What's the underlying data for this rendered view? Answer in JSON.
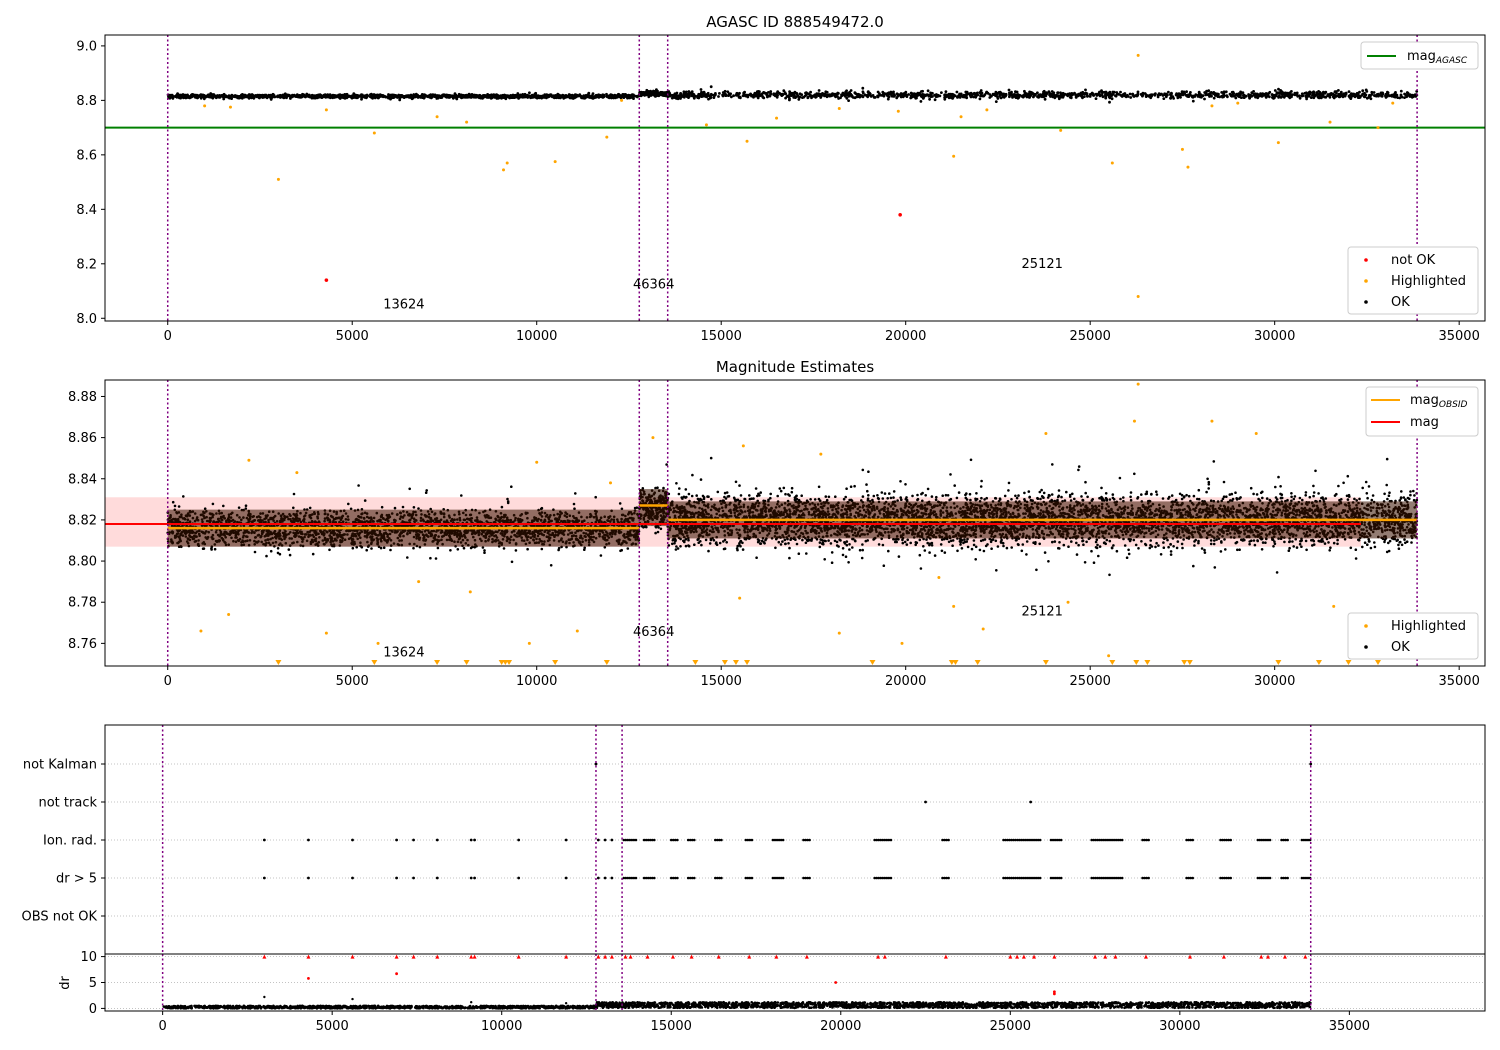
{
  "figure_title": "AGASC ID 888549472.0",
  "colors": {
    "ok": "#000000",
    "highlighted": "#ffa500",
    "not_ok": "#ff0000",
    "mag_agasc_line": "#008000",
    "mag_line": "#ff0000",
    "mag_band": "#ffcccc",
    "mag_obsid_line": "#ffa500",
    "divider": "#800080",
    "grid": "#b0b0b0"
  },
  "chart_data": [
    {
      "type": "scatter",
      "title": "AGASC ID 888549472.0",
      "xlim": [
        -1700,
        35700
      ],
      "ylim": [
        7.99,
        9.04
      ],
      "xticks": [
        0,
        5000,
        10000,
        15000,
        20000,
        25000,
        30000,
        35000
      ],
      "yticks": [
        8.0,
        8.2,
        8.4,
        8.6,
        8.8,
        9.0
      ],
      "ytick_labels": [
        "8.0",
        "8.2",
        "8.4",
        "8.6",
        "8.8",
        "9.0"
      ],
      "mag_agasc": 8.7,
      "mag_agasc_xrange": [
        -1700,
        35700
      ],
      "observation_boundaries": [
        0,
        12780,
        13550,
        33860
      ],
      "observation_labels": [
        {
          "text": "13624",
          "x": 6400,
          "y": 8.035
        },
        {
          "text": "46364",
          "x": 13170,
          "y": 8.11
        },
        {
          "text": "25121",
          "x": 23700,
          "y": 8.185
        }
      ],
      "ok_band": {
        "segments": [
          {
            "x": [
              0,
              12780
            ],
            "center": 8.815,
            "halfwidth": 0.012
          },
          {
            "x": [
              12780,
              13550
            ],
            "center": 8.825,
            "halfwidth": 0.015
          },
          {
            "x": [
              13550,
              33860
            ],
            "center": 8.82,
            "halfwidth": 0.022
          }
        ]
      },
      "highlighted_points": [
        [
          3000,
          8.51
        ],
        [
          5600,
          8.68
        ],
        [
          9100,
          8.545
        ],
        [
          9200,
          8.57
        ],
        [
          10500,
          8.575
        ],
        [
          11900,
          8.665
        ],
        [
          21300,
          8.595
        ],
        [
          25600,
          8.57
        ],
        [
          27500,
          8.62
        ],
        [
          27650,
          8.555
        ],
        [
          30100,
          8.645
        ],
        [
          26300,
          8.08
        ],
        [
          26300,
          8.965
        ],
        [
          14600,
          8.71
        ],
        [
          15700,
          8.65
        ],
        [
          19800,
          8.76
        ],
        [
          24200,
          8.69
        ],
        [
          31500,
          8.72
        ],
        [
          32800,
          8.7
        ],
        [
          8100,
          8.72
        ],
        [
          7300,
          8.74
        ],
        [
          1000,
          8.78
        ],
        [
          1700,
          8.775
        ],
        [
          4300,
          8.765
        ],
        [
          12300,
          8.8
        ],
        [
          16500,
          8.735
        ],
        [
          18200,
          8.77
        ],
        [
          21500,
          8.74
        ],
        [
          22200,
          8.765
        ],
        [
          28300,
          8.78
        ],
        [
          29000,
          8.79
        ],
        [
          33200,
          8.79
        ]
      ],
      "not_ok_points": [
        [
          4300,
          8.14
        ],
        [
          19850,
          8.38
        ]
      ],
      "legends": [
        {
          "position": "upper-right",
          "entries": [
            {
              "label": "mag",
              "sub": "AGASC",
              "kind": "line",
              "color": "#008000"
            }
          ]
        },
        {
          "position": "lower-right",
          "entries": [
            {
              "label": "not OK",
              "kind": "point",
              "color": "#ff0000"
            },
            {
              "label": "Highlighted",
              "kind": "point",
              "color": "#ffa500"
            },
            {
              "label": "OK",
              "kind": "point",
              "color": "#000000"
            }
          ]
        }
      ]
    },
    {
      "type": "scatter",
      "title": "Magnitude Estimates",
      "xlim": [
        -1700,
        35700
      ],
      "ylim": [
        8.749,
        8.888
      ],
      "xticks": [
        0,
        5000,
        10000,
        15000,
        20000,
        25000,
        30000,
        35000
      ],
      "yticks": [
        8.76,
        8.78,
        8.8,
        8.82,
        8.84,
        8.86,
        8.88
      ],
      "ytick_labels": [
        "8.76",
        "8.78",
        "8.80",
        "8.82",
        "8.84",
        "8.86",
        "8.88"
      ],
      "mag": 8.818,
      "mag_band": [
        8.807,
        8.831
      ],
      "mag_obsid": [
        {
          "x": [
            0,
            12780
          ],
          "value": 8.816
        },
        {
          "x": [
            12780,
            13550
          ],
          "value": 8.827
        },
        {
          "x": [
            13550,
            33860
          ],
          "value": 8.82
        }
      ],
      "observation_boundaries": [
        0,
        12780,
        13550,
        33860
      ],
      "observation_labels": [
        {
          "text": "13624",
          "x": 6400,
          "y": 8.7535
        },
        {
          "text": "46364",
          "x": 13170,
          "y": 8.7635
        },
        {
          "text": "25121",
          "x": 23700,
          "y": 8.7735
        }
      ],
      "ok_band": {
        "segments": [
          {
            "x": [
              0,
              12780
            ],
            "center": 8.816,
            "halfwidth": 0.02
          },
          {
            "x": [
              12780,
              13550
            ],
            "center": 8.826,
            "halfwidth": 0.024
          },
          {
            "x": [
              13550,
              33860
            ],
            "center": 8.82,
            "halfwidth": 0.03
          }
        ]
      },
      "highlighted_points": [
        [
          900,
          8.766
        ],
        [
          1650,
          8.774
        ],
        [
          4300,
          8.765
        ],
        [
          5700,
          8.76
        ],
        [
          9800,
          8.76
        ],
        [
          11100,
          8.766
        ],
        [
          13150,
          8.86
        ],
        [
          15600,
          8.856
        ],
        [
          18200,
          8.765
        ],
        [
          19900,
          8.76
        ],
        [
          22100,
          8.767
        ],
        [
          25500,
          8.754
        ],
        [
          26300,
          8.886
        ],
        [
          26200,
          8.868
        ],
        [
          28300,
          8.868
        ],
        [
          2200,
          8.849
        ],
        [
          10000,
          8.848
        ],
        [
          23800,
          8.862
        ],
        [
          29500,
          8.862
        ],
        [
          32700,
          8.862
        ],
        [
          21300,
          8.778
        ],
        [
          24400,
          8.78
        ],
        [
          31600,
          8.778
        ],
        [
          6800,
          8.79
        ],
        [
          8200,
          8.785
        ],
        [
          15500,
          8.782
        ],
        [
          20900,
          8.792
        ],
        [
          3500,
          8.843
        ],
        [
          12000,
          8.838
        ],
        [
          17700,
          8.852
        ]
      ],
      "clipped_markers_x": [
        3000,
        5600,
        7300,
        8100,
        9050,
        9150,
        9250,
        10500,
        11900,
        14300,
        15100,
        15400,
        15700,
        19100,
        21250,
        21350,
        21950,
        23800,
        25600,
        26250,
        26550,
        27550,
        27700,
        30100,
        31200,
        32000,
        32800
      ],
      "legends": [
        {
          "position": "upper-right",
          "entries": [
            {
              "label": "mag",
              "sub": "OBSID",
              "kind": "line",
              "color": "#ffa500"
            },
            {
              "label": "mag",
              "kind": "line",
              "color": "#ff0000"
            }
          ]
        },
        {
          "position": "lower-right",
          "entries": [
            {
              "label": "Highlighted",
              "kind": "point",
              "color": "#ffa500"
            },
            {
              "label": "OK",
              "kind": "point",
              "color": "#000000"
            }
          ]
        }
      ]
    },
    {
      "type": "scatter",
      "title": "",
      "xlim": [
        -1700,
        39000
      ],
      "categories": [
        "not Kalman",
        "not track",
        "Ion. rad.",
        "dr > 5",
        "OBS not OK"
      ],
      "observation_boundaries": [
        0,
        12780,
        13550,
        33860
      ],
      "flags": {
        "not Kalman": [
          12780,
          33860
        ],
        "not track": [
          22500,
          25600
        ],
        "Ion. rad.": [
          3000,
          4300,
          5600,
          6900,
          7400,
          8100,
          9100,
          9200,
          10500,
          11900,
          12850,
          13050,
          13250
        ],
        "dr > 5": [
          3000,
          4300,
          5600,
          6900,
          7400,
          8100,
          9100,
          9200,
          10500,
          11900,
          12850,
          13050,
          13250
        ],
        "OBS not OK": []
      },
      "flag_dense_ranges": [
        [
          13600,
          14000
        ],
        [
          14200,
          14500
        ],
        [
          15000,
          15200
        ],
        [
          15500,
          15700
        ],
        [
          16300,
          16500
        ],
        [
          17200,
          17400
        ],
        [
          18000,
          18300
        ],
        [
          18900,
          19100
        ],
        [
          21000,
          21500
        ],
        [
          23000,
          23200
        ],
        [
          24800,
          25900
        ],
        [
          26200,
          26500
        ],
        [
          27400,
          28300
        ],
        [
          28900,
          29100
        ],
        [
          30200,
          30400
        ],
        [
          31200,
          31500
        ],
        [
          32300,
          32700
        ],
        [
          33000,
          33200
        ],
        [
          33600,
          33860
        ]
      ]
    },
    {
      "type": "scatter",
      "title": "",
      "ylabel": "dr",
      "xlim": [
        -1700,
        39000
      ],
      "ylim": [
        -0.5,
        10.5
      ],
      "xticks": [
        0,
        5000,
        10000,
        15000,
        20000,
        25000,
        30000,
        35000
      ],
      "yticks": [
        0,
        5,
        10
      ],
      "ytick_labels": [
        "0",
        "5",
        "10"
      ],
      "observation_boundaries": [
        0,
        12780,
        13550,
        33860
      ],
      "ok_band": {
        "segments": [
          {
            "x": [
              0,
              12780
            ],
            "low": 0.0,
            "high": 0.5
          },
          {
            "x": [
              12780,
              33860
            ],
            "low": 0.1,
            "high": 1.2
          }
        ]
      },
      "capped_at": 10,
      "capped_x": [
        3000,
        4300,
        5600,
        6900,
        7400,
        8100,
        9100,
        9200,
        10500,
        11900,
        12850,
        13050,
        13250,
        13650,
        13800,
        14300,
        15050,
        15600,
        16400,
        17300,
        18100,
        19000,
        21100,
        21300,
        23100,
        25000,
        25200,
        25400,
        25700,
        26300,
        27500,
        27800,
        28100,
        29000,
        30300,
        31300,
        32400,
        32600,
        33100,
        33700
      ],
      "red_points": [
        [
          4300,
          5.8
        ],
        [
          6900,
          6.7
        ],
        [
          19850,
          5.0
        ],
        [
          26300,
          3.2
        ],
        [
          26300,
          2.8
        ]
      ],
      "black_points": [
        [
          3000,
          2.2
        ],
        [
          5600,
          1.8
        ],
        [
          9100,
          1.2
        ],
        [
          11900,
          1.0
        ]
      ]
    }
  ]
}
